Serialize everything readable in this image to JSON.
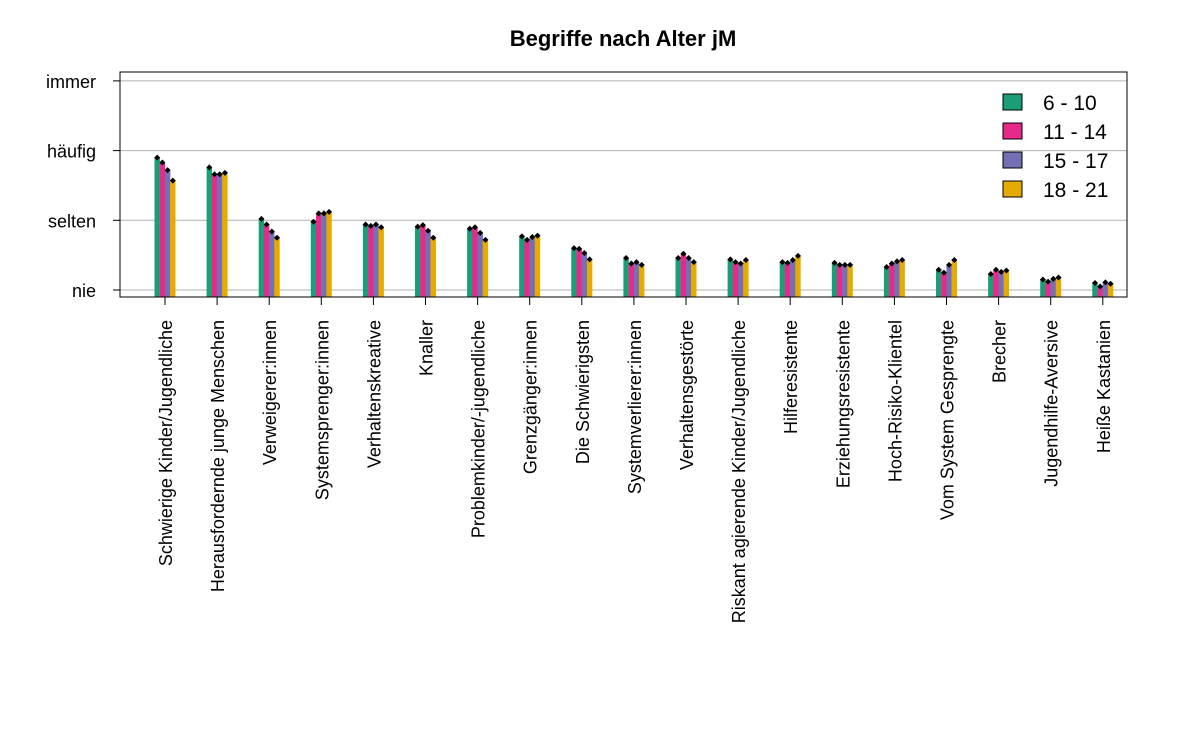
{
  "chart_data": {
    "type": "bar",
    "title": "Begriffe nach Alter jM",
    "xlabel": "",
    "ylabel": "",
    "ylim": [
      0,
      3
    ],
    "y_ticks": [
      {
        "value": 0,
        "label": "nie"
      },
      {
        "value": 1,
        "label": "selten"
      },
      {
        "value": 2,
        "label": "häufig"
      },
      {
        "value": 3,
        "label": "immer"
      }
    ],
    "grid": true,
    "legend_position": "top-right",
    "categories": [
      "Schwierige Kinder/Jugendliche",
      "Herausfordernde junge Menschen",
      "Verweigerer:innen",
      "Systemsprenger:innen",
      "Verhaltenskreative",
      "Knaller",
      "Problemkinder/-jugendliche",
      "Grenzgänger:innen",
      "Die Schwierigsten",
      "Systemverlierer:innen",
      "Verhaltensgestörte",
      "Riskant agierende Kinder/Jugendliche",
      "Hilferesistente",
      "Erziehungsresistente",
      "Hoch-Risiko-Klientel",
      "Vom System Gesprengte",
      "Brecher",
      "Jugendhilfe-Aversive",
      "Heiße Kastanien"
    ],
    "series": [
      {
        "name": "6 - 10",
        "color": "#1b9e77",
        "values": [
          1.9,
          1.76,
          1.02,
          0.98,
          0.94,
          0.91,
          0.88,
          0.77,
          0.6,
          0.46,
          0.46,
          0.44,
          0.4,
          0.39,
          0.33,
          0.29,
          0.23,
          0.15,
          0.1
        ]
      },
      {
        "name": "11 - 14",
        "color": "#e7298a",
        "values": [
          1.83,
          1.66,
          0.94,
          1.1,
          0.92,
          0.93,
          0.9,
          0.72,
          0.59,
          0.38,
          0.52,
          0.4,
          0.39,
          0.36,
          0.38,
          0.25,
          0.29,
          0.12,
          0.05
        ]
      },
      {
        "name": "15 - 17",
        "color": "#7570b3",
        "values": [
          1.72,
          1.66,
          0.84,
          1.1,
          0.94,
          0.85,
          0.82,
          0.76,
          0.53,
          0.4,
          0.46,
          0.38,
          0.43,
          0.36,
          0.41,
          0.36,
          0.26,
          0.16,
          0.11
        ]
      },
      {
        "name": "18 - 21",
        "color": "#e6ab02",
        "values": [
          1.57,
          1.68,
          0.75,
          1.12,
          0.9,
          0.75,
          0.72,
          0.78,
          0.44,
          0.36,
          0.4,
          0.43,
          0.49,
          0.36,
          0.43,
          0.43,
          0.28,
          0.18,
          0.09
        ]
      }
    ]
  }
}
